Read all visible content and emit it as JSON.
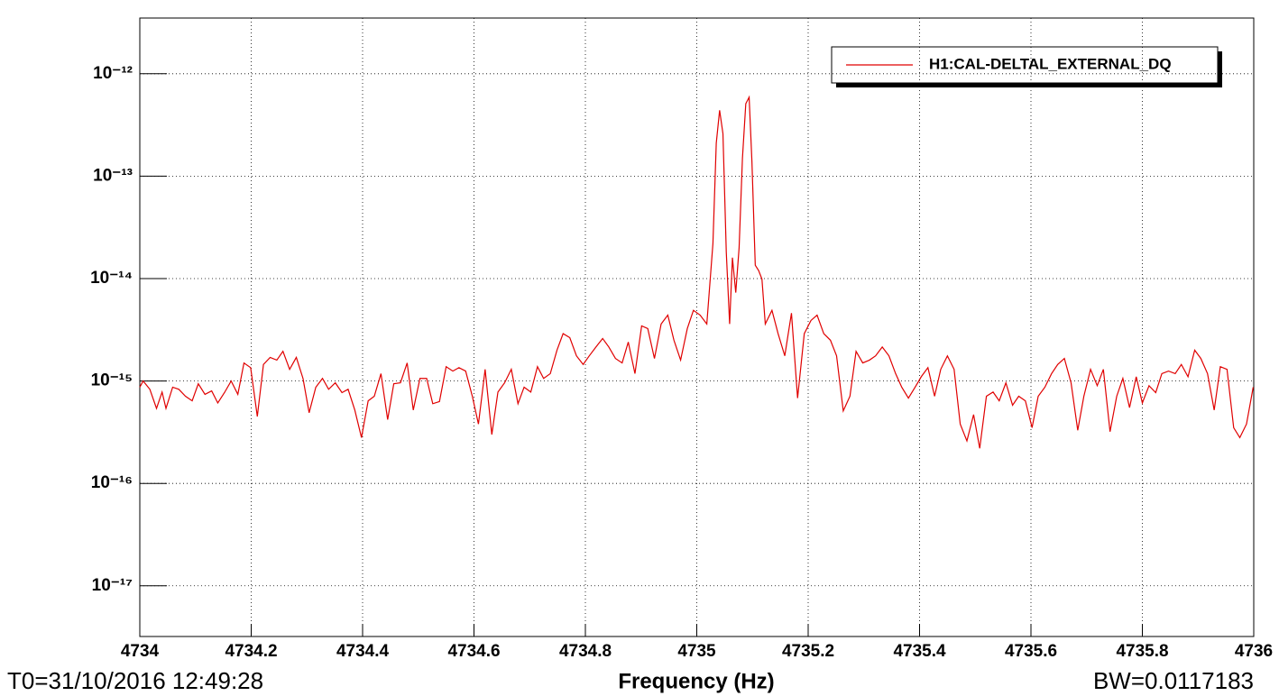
{
  "chart_data": {
    "type": "line",
    "xlabel": "Frequency (Hz)",
    "footer_left": "T0=31/10/2016 12:49:28",
    "footer_right": "BW=0.0117183",
    "log_y": true,
    "grid": true,
    "legend": "top-right",
    "xlim": [
      4734,
      4736
    ],
    "xticks": [
      4734,
      4734.2,
      4734.4,
      4734.6,
      4734.8,
      4735,
      4735.2,
      4735.4,
      4735.6,
      4735.8,
      4736
    ],
    "ylim": [
      3.2e-18,
      3.5e-12
    ],
    "yticks": [
      {
        "value": 1e-17,
        "label": "10⁻¹⁷"
      },
      {
        "value": 1e-16,
        "label": "10⁻¹⁶"
      },
      {
        "value": 1e-15,
        "label": "10⁻¹⁵"
      },
      {
        "value": 1e-14,
        "label": "10⁻¹⁴"
      },
      {
        "value": 1e-13,
        "label": "10⁻¹³"
      },
      {
        "value": 1e-12,
        "label": "10⁻¹²"
      }
    ],
    "x": [
      4734.0,
      4734.006,
      4734.018,
      4734.03,
      4734.04,
      4734.047,
      4734.059,
      4734.07,
      4734.082,
      4734.094,
      4734.105,
      4734.117,
      4734.129,
      4734.14,
      4734.152,
      4734.164,
      4734.176,
      4734.187,
      4734.199,
      4734.211,
      4734.222,
      4734.234,
      4734.246,
      4734.257,
      4734.269,
      4734.281,
      4734.293,
      4734.304,
      4734.316,
      4734.328,
      4734.339,
      4734.351,
      4734.363,
      4734.374,
      4734.386,
      4734.398,
      4734.41,
      4734.421,
      4734.433,
      4734.445,
      4734.456,
      4734.468,
      4734.48,
      4734.491,
      4734.503,
      4734.515,
      4734.526,
      4734.538,
      4734.55,
      4734.562,
      4734.573,
      4734.585,
      4734.597,
      4734.608,
      4734.62,
      4734.632,
      4734.643,
      4734.655,
      4734.667,
      4734.679,
      4734.69,
      4734.702,
      4734.714,
      4734.725,
      4734.737,
      4734.749,
      4734.76,
      4734.772,
      4734.784,
      4734.796,
      4734.807,
      4734.819,
      4734.831,
      4734.842,
      4734.854,
      4734.866,
      4734.877,
      4734.889,
      4734.901,
      4734.912,
      4734.924,
      4734.936,
      4734.948,
      4734.959,
      4734.971,
      4734.983,
      4734.994,
      4735.006,
      4735.018,
      4735.029,
      4735.035,
      4735.041,
      4735.047,
      4735.053,
      4735.059,
      4735.064,
      4735.07,
      4735.076,
      4735.082,
      4735.088,
      4735.094,
      4735.099,
      4735.105,
      4735.111,
      4735.117,
      4735.123,
      4735.135,
      4735.146,
      4735.158,
      4735.17,
      4735.181,
      4735.193,
      4735.205,
      4735.216,
      4735.228,
      4735.24,
      4735.251,
      4735.263,
      4735.275,
      4735.286,
      4735.298,
      4735.31,
      4735.321,
      4735.333,
      4735.345,
      4735.357,
      4735.368,
      4735.38,
      4735.392,
      4735.403,
      4735.415,
      4735.427,
      4735.438,
      4735.45,
      4735.462,
      4735.473,
      4735.485,
      4735.497,
      4735.508,
      4735.52,
      4735.532,
      4735.543,
      4735.555,
      4735.567,
      4735.578,
      4735.59,
      4735.602,
      4735.613,
      4735.625,
      4735.637,
      4735.648,
      4735.66,
      4735.672,
      4735.684,
      4735.695,
      4735.707,
      4735.719,
      4735.73,
      4735.742,
      4735.754,
      4735.765,
      4735.777,
      4735.789,
      4735.8,
      4735.812,
      4735.824,
      4735.835,
      4735.847,
      4735.859,
      4735.87,
      4735.882,
      4735.894,
      4735.905,
      4735.917,
      4735.929,
      4735.94,
      4735.952,
      4735.964,
      4735.975,
      4735.987,
      4735.999
    ],
    "series": [
      {
        "name": "H1:CAL-DELTAL_EXTERNAL_DQ",
        "color": "#e00000",
        "values": [
          8.7e-16,
          1e-15,
          8.3e-16,
          5.4e-16,
          7.8e-16,
          5.4e-16,
          8.7e-16,
          8.3e-16,
          7.1e-16,
          6.4e-16,
          9.4e-16,
          7.4e-16,
          8e-16,
          6.1e-16,
          7.7e-16,
          1e-15,
          7.4e-16,
          1.5e-15,
          1.35e-15,
          4.5e-16,
          1.45e-15,
          1.7e-15,
          1.6e-15,
          1.95e-15,
          1.3e-15,
          1.7e-15,
          1.06e-15,
          4.9e-16,
          8.7e-16,
          1.06e-15,
          8.3e-16,
          9.6e-16,
          7.7e-16,
          8.3e-16,
          5.2e-16,
          2.8e-16,
          6.4e-16,
          7.1e-16,
          1.18e-15,
          4.2e-16,
          9.4e-16,
          9.6e-16,
          1.5e-15,
          5.2e-16,
          1.06e-15,
          1.06e-15,
          6e-16,
          6.3e-16,
          1.38e-15,
          1.25e-15,
          1.35e-15,
          1.25e-15,
          7.1e-16,
          3.8e-16,
          1.3e-15,
          3e-16,
          7.8e-16,
          9.6e-16,
          1.3e-15,
          6e-16,
          8.7e-16,
          7.8e-16,
          1.38e-15,
          1.06e-15,
          1.18e-15,
          2e-15,
          2.9e-15,
          2.65e-15,
          1.76e-15,
          1.45e-15,
          1.76e-15,
          2.15e-15,
          2.6e-15,
          2.15e-15,
          1.66e-15,
          1.5e-15,
          2.4e-15,
          1.18e-15,
          3.45e-15,
          3.25e-15,
          1.66e-15,
          3.6e-15,
          4.4e-15,
          2.5e-15,
          1.6e-15,
          3.25e-15,
          4.9e-15,
          4.4e-15,
          3.6e-15,
          2.2e-14,
          2.1e-13,
          4.4e-13,
          2.6e-13,
          1.8e-14,
          3.6e-15,
          1.6e-14,
          7.3e-15,
          2e-14,
          1.5e-13,
          5.1e-13,
          5.9e-13,
          1.4e-13,
          1.35e-14,
          1.2e-14,
          9.9e-15,
          3.6e-15,
          4.9e-15,
          2.9e-15,
          1.76e-15,
          4.6e-15,
          6.8e-16,
          2.9e-15,
          3.9e-15,
          4.4e-15,
          2.9e-15,
          2.5e-15,
          1.76e-15,
          5.1e-16,
          7.1e-16,
          1.95e-15,
          1.5e-15,
          1.6e-15,
          1.76e-15,
          2.15e-15,
          1.76e-15,
          1.18e-15,
          8.7e-16,
          6.8e-16,
          8.7e-16,
          1.1e-15,
          1.35e-15,
          7.1e-16,
          1.3e-15,
          1.76e-15,
          1.3e-15,
          3.8e-16,
          2.6e-16,
          4.7e-16,
          2.2e-16,
          7.1e-16,
          7.8e-16,
          6.4e-16,
          9.6e-16,
          5.8e-16,
          7.1e-16,
          6.4e-16,
          3.5e-16,
          7.1e-16,
          8.7e-16,
          1.18e-15,
          1.45e-15,
          1.66e-15,
          9.6e-16,
          3.3e-16,
          7.1e-16,
          1.3e-15,
          9e-16,
          1.3e-15,
          3.2e-16,
          7.1e-16,
          1.06e-15,
          5.5e-16,
          1.1e-15,
          6.1e-16,
          9e-16,
          7.7e-16,
          1.18e-15,
          1.25e-15,
          1.18e-15,
          1.45e-15,
          1.1e-15,
          2e-15,
          1.66e-15,
          1.18e-15,
          5.2e-16,
          1.38e-15,
          1.3e-15,
          3.5e-16,
          2.8e-16,
          3.8e-16,
          8.7e-16
        ]
      }
    ]
  }
}
